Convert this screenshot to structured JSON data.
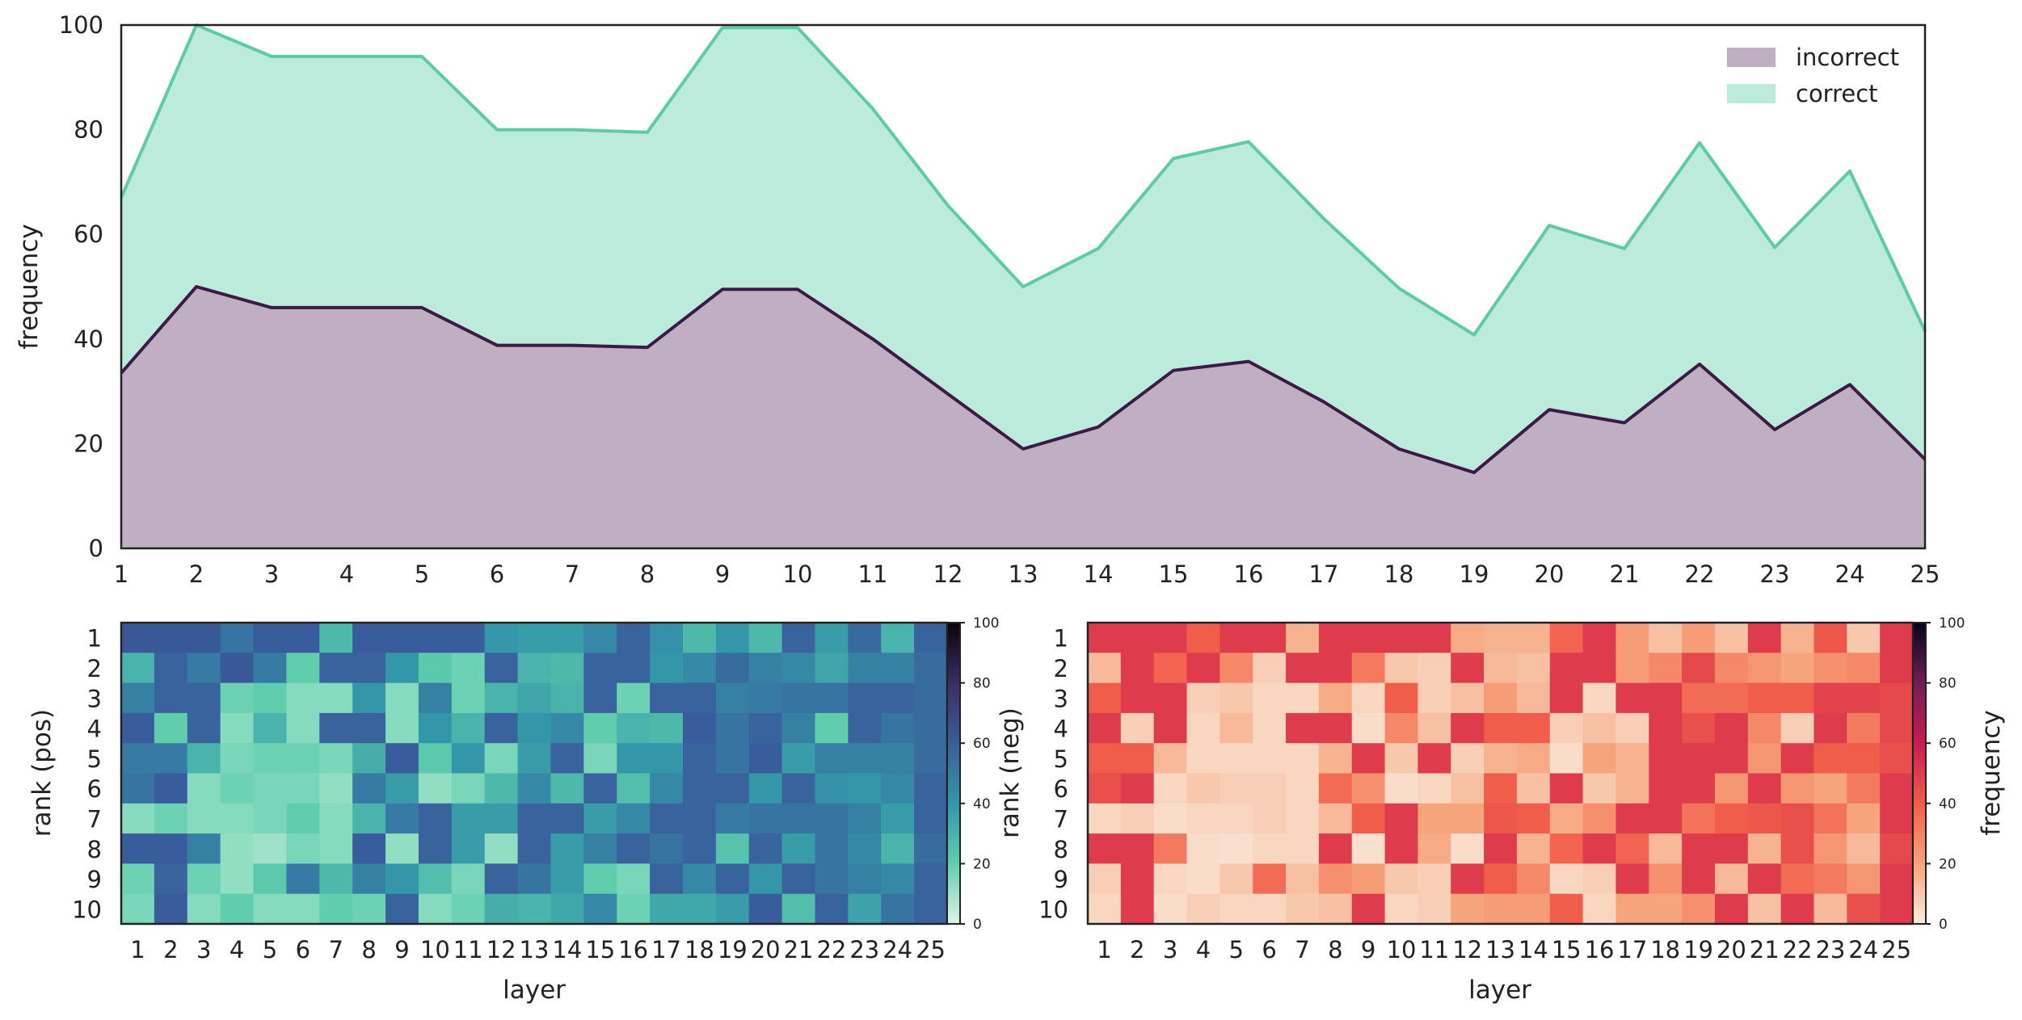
{
  "chart_data": [
    {
      "type": "area",
      "title": "",
      "xlabel": "",
      "ylabel": "frequency",
      "xlim": [
        1,
        25
      ],
      "ylim": [
        0,
        100
      ],
      "x": [
        1,
        2,
        3,
        4,
        5,
        6,
        7,
        8,
        9,
        10,
        11,
        12,
        13,
        14,
        15,
        16,
        17,
        18,
        19,
        20,
        21,
        22,
        23,
        24,
        25
      ],
      "xticks": [
        1,
        2,
        3,
        4,
        5,
        6,
        7,
        8,
        9,
        10,
        11,
        12,
        13,
        14,
        15,
        16,
        17,
        18,
        19,
        20,
        21,
        22,
        23,
        24,
        25
      ],
      "yticks": [
        0,
        20,
        40,
        60,
        80,
        100
      ],
      "stacked": true,
      "legend_position": "top-right",
      "series": [
        {
          "name": "incorrect",
          "fill": "#c0afc2",
          "line": "#3d1a45",
          "values": [
            33.5,
            50,
            46,
            46,
            46,
            38.8,
            38.8,
            38.4,
            49.5,
            49.5,
            40,
            29.5,
            19,
            23.2,
            34,
            35.7,
            28,
            19,
            14.5,
            26.5,
            24,
            35.2,
            22.7,
            31.3,
            17
          ]
        },
        {
          "name": "correct",
          "fill": "#bdebdb",
          "line": "#5ccba7",
          "values": [
            33.5,
            50,
            48,
            48,
            48,
            41.2,
            41.2,
            41.1,
            50,
            50,
            44,
            36,
            31,
            34.1,
            40.5,
            42,
            35,
            30.7,
            26.3,
            35.2,
            33.3,
            42.3,
            34.8,
            40.8,
            24.5
          ]
        }
      ]
    },
    {
      "type": "heatmap",
      "xlabel": "layer",
      "ylabel": "rank (pos)",
      "colorbar_label": "",
      "colormap": "mako_r",
      "vmin": 0,
      "vmax": 100,
      "colorbar_ticks": [
        0,
        20,
        40,
        60,
        80,
        100
      ],
      "x": [
        1,
        2,
        3,
        4,
        5,
        6,
        7,
        8,
        9,
        10,
        11,
        12,
        13,
        14,
        15,
        16,
        17,
        18,
        19,
        20,
        21,
        22,
        23,
        24,
        25
      ],
      "y": [
        1,
        2,
        3,
        4,
        5,
        6,
        7,
        8,
        9,
        10
      ],
      "values": [
        [
          62,
          62,
          62,
          52,
          60,
          60,
          28,
          60,
          60,
          60,
          60,
          40,
          38,
          38,
          45,
          58,
          42,
          28,
          40,
          28,
          58,
          38,
          56,
          30,
          58
        ],
        [
          30,
          58,
          50,
          62,
          50,
          20,
          58,
          58,
          40,
          22,
          18,
          58,
          30,
          28,
          58,
          58,
          40,
          45,
          55,
          48,
          45,
          35,
          48,
          48,
          55
        ],
        [
          48,
          58,
          58,
          18,
          20,
          14,
          14,
          40,
          14,
          48,
          18,
          30,
          35,
          30,
          58,
          18,
          58,
          58,
          48,
          50,
          52,
          52,
          58,
          58,
          55
        ],
        [
          60,
          20,
          58,
          14,
          30,
          14,
          58,
          58,
          14,
          40,
          30,
          58,
          40,
          45,
          20,
          30,
          28,
          60,
          52,
          58,
          48,
          20,
          58,
          52,
          55
        ],
        [
          50,
          50,
          30,
          16,
          18,
          18,
          16,
          32,
          60,
          22,
          40,
          16,
          38,
          58,
          16,
          40,
          40,
          58,
          52,
          60,
          38,
          48,
          48,
          48,
          55
        ],
        [
          52,
          60,
          14,
          18,
          16,
          16,
          12,
          50,
          38,
          12,
          16,
          28,
          45,
          28,
          58,
          26,
          45,
          58,
          58,
          40,
          58,
          42,
          40,
          45,
          58
        ],
        [
          14,
          18,
          14,
          14,
          16,
          20,
          14,
          30,
          50,
          58,
          38,
          38,
          58,
          58,
          38,
          45,
          58,
          58,
          50,
          52,
          52,
          52,
          48,
          38,
          58
        ],
        [
          60,
          60,
          48,
          12,
          10,
          16,
          14,
          60,
          12,
          58,
          38,
          12,
          58,
          38,
          48,
          58,
          52,
          58,
          24,
          58,
          38,
          52,
          45,
          30,
          55
        ],
        [
          18,
          58,
          18,
          12,
          22,
          50,
          28,
          48,
          40,
          26,
          16,
          58,
          52,
          38,
          20,
          16,
          58,
          45,
          58,
          40,
          58,
          52,
          48,
          45,
          58
        ],
        [
          16,
          60,
          14,
          20,
          14,
          14,
          20,
          18,
          58,
          14,
          18,
          32,
          30,
          34,
          45,
          18,
          34,
          34,
          38,
          60,
          26,
          58,
          36,
          52,
          58
        ]
      ]
    },
    {
      "type": "heatmap",
      "xlabel": "layer",
      "ylabel": "rank (neg)",
      "colorbar_label": "frequency",
      "colormap": "rocket_r",
      "vmin": 0,
      "vmax": 100,
      "colorbar_ticks": [
        0,
        20,
        40,
        60,
        80,
        100
      ],
      "x": [
        1,
        2,
        3,
        4,
        5,
        6,
        7,
        8,
        9,
        10,
        11,
        12,
        13,
        14,
        15,
        16,
        17,
        18,
        19,
        20,
        21,
        22,
        23,
        24,
        25
      ],
      "y": [
        1,
        2,
        3,
        4,
        5,
        6,
        7,
        8,
        9,
        10
      ],
      "values": [
        [
          50,
          50,
          50,
          40,
          50,
          50,
          16,
          50,
          50,
          50,
          50,
          18,
          16,
          16,
          38,
          50,
          22,
          12,
          22,
          12,
          50,
          16,
          42,
          10,
          50
        ],
        [
          14,
          50,
          38,
          50,
          28,
          8,
          50,
          50,
          32,
          10,
          8,
          50,
          14,
          12,
          50,
          50,
          22,
          28,
          46,
          28,
          24,
          20,
          26,
          28,
          50
        ],
        [
          40,
          50,
          50,
          8,
          10,
          6,
          6,
          18,
          6,
          40,
          8,
          12,
          22,
          14,
          50,
          6,
          50,
          50,
          36,
          36,
          40,
          40,
          48,
          48,
          46
        ],
        [
          50,
          8,
          50,
          6,
          14,
          6,
          50,
          50,
          4,
          28,
          12,
          50,
          40,
          40,
          8,
          12,
          8,
          50,
          44,
          50,
          28,
          8,
          50,
          32,
          46
        ],
        [
          40,
          40,
          14,
          6,
          6,
          6,
          6,
          16,
          50,
          10,
          50,
          8,
          16,
          18,
          4,
          20,
          16,
          50,
          50,
          50,
          24,
          50,
          40,
          40,
          44
        ],
        [
          44,
          50,
          6,
          10,
          8,
          8,
          6,
          36,
          26,
          4,
          6,
          12,
          40,
          12,
          50,
          10,
          16,
          50,
          50,
          24,
          50,
          24,
          20,
          32,
          50
        ],
        [
          6,
          8,
          4,
          6,
          6,
          8,
          6,
          14,
          40,
          50,
          20,
          20,
          42,
          40,
          18,
          26,
          50,
          50,
          34,
          40,
          42,
          44,
          34,
          20,
          50
        ],
        [
          50,
          50,
          32,
          4,
          3,
          6,
          6,
          50,
          3,
          50,
          18,
          4,
          50,
          16,
          38,
          50,
          38,
          14,
          50,
          50,
          16,
          44,
          24,
          14,
          46
        ],
        [
          8,
          50,
          6,
          4,
          10,
          36,
          12,
          26,
          22,
          10,
          8,
          50,
          40,
          28,
          6,
          8,
          50,
          26,
          50,
          14,
          50,
          36,
          32,
          24,
          50
        ],
        [
          6,
          50,
          4,
          8,
          6,
          6,
          10,
          12,
          50,
          6,
          8,
          20,
          22,
          22,
          40,
          6,
          20,
          20,
          26,
          50,
          12,
          50,
          14,
          44,
          50
        ]
      ]
    }
  ]
}
